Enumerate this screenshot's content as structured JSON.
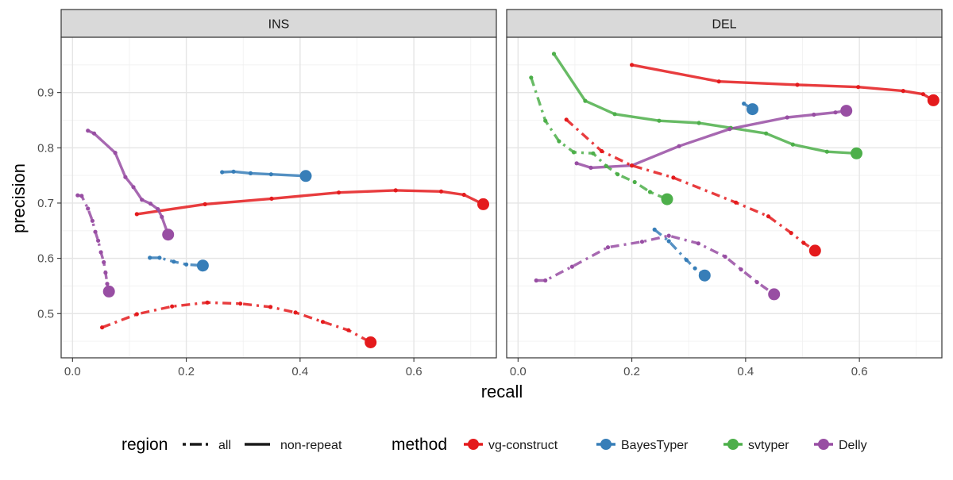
{
  "chart_data": {
    "type": "line",
    "xlabel": "recall",
    "ylabel": "precision",
    "xlim": [
      -0.02,
      0.745
    ],
    "ylim": [
      0.42,
      1.0
    ],
    "x_ticks": [
      0.0,
      0.2,
      0.4,
      0.6
    ],
    "x_tick_labels": [
      "0.0",
      "0.2",
      "0.4",
      "0.6"
    ],
    "y_ticks": [
      0.5,
      0.6,
      0.7,
      0.8,
      0.9
    ],
    "y_tick_labels": [
      "0.5",
      "0.6",
      "0.7",
      "0.8",
      "0.9"
    ],
    "grid": true,
    "legend_position": "bottom",
    "legend": {
      "region_title": "region",
      "region_items": [
        {
          "label": "all",
          "dash": "dashed"
        },
        {
          "label": "non-repeat",
          "dash": "solid"
        }
      ],
      "method_title": "method",
      "method_items": [
        {
          "label": "vg-construct",
          "color": "#e41a1c"
        },
        {
          "label": "BayesTyper",
          "color": "#377eb8"
        },
        {
          "label": "svtyper",
          "color": "#4daf4a"
        },
        {
          "label": "Delly",
          "color": "#984ea3"
        }
      ]
    },
    "colors": {
      "vg-construct": "#e41a1c",
      "BayesTyper": "#377eb8",
      "svtyper": "#4daf4a",
      "Delly": "#984ea3"
    },
    "panels": [
      {
        "title": "INS",
        "series": [
          {
            "method": "vg-construct",
            "region": "non-repeat",
            "points": [
              [
                0.113,
                0.68
              ],
              [
                0.233,
                0.698
              ],
              [
                0.35,
                0.708
              ],
              [
                0.468,
                0.719
              ],
              [
                0.568,
                0.723
              ],
              [
                0.648,
                0.721
              ],
              [
                0.688,
                0.715
              ],
              [
                0.722,
                0.698
              ]
            ]
          },
          {
            "method": "BayesTyper",
            "region": "non-repeat",
            "points": [
              [
                0.263,
                0.756
              ],
              [
                0.283,
                0.757
              ],
              [
                0.313,
                0.754
              ],
              [
                0.349,
                0.752
              ],
              [
                0.41,
                0.749
              ]
            ]
          },
          {
            "method": "Delly",
            "region": "non-repeat",
            "points": [
              [
                0.027,
                0.831
              ],
              [
                0.038,
                0.826
              ],
              [
                0.075,
                0.791
              ],
              [
                0.093,
                0.747
              ],
              [
                0.107,
                0.729
              ],
              [
                0.122,
                0.706
              ],
              [
                0.137,
                0.699
              ],
              [
                0.15,
                0.689
              ],
              [
                0.157,
                0.675
              ],
              [
                0.168,
                0.643
              ]
            ]
          },
          {
            "method": "vg-construct",
            "region": "all",
            "points": [
              [
                0.052,
                0.475
              ],
              [
                0.113,
                0.499
              ],
              [
                0.175,
                0.513
              ],
              [
                0.237,
                0.52
              ],
              [
                0.295,
                0.518
              ],
              [
                0.348,
                0.512
              ],
              [
                0.392,
                0.502
              ],
              [
                0.44,
                0.485
              ],
              [
                0.485,
                0.47
              ],
              [
                0.524,
                0.448
              ]
            ]
          },
          {
            "method": "BayesTyper",
            "region": "all",
            "points": [
              [
                0.136,
                0.601
              ],
              [
                0.153,
                0.601
              ],
              [
                0.178,
                0.594
              ],
              [
                0.2,
                0.589
              ],
              [
                0.229,
                0.587
              ]
            ]
          },
          {
            "method": "Delly",
            "region": "all",
            "points": [
              [
                0.009,
                0.714
              ],
              [
                0.016,
                0.713
              ],
              [
                0.027,
                0.69
              ],
              [
                0.035,
                0.668
              ],
              [
                0.04,
                0.648
              ],
              [
                0.045,
                0.632
              ],
              [
                0.05,
                0.611
              ],
              [
                0.055,
                0.593
              ],
              [
                0.058,
                0.574
              ],
              [
                0.061,
                0.554
              ],
              [
                0.064,
                0.54
              ]
            ]
          }
        ]
      },
      {
        "title": "DEL",
        "series": [
          {
            "method": "vg-construct",
            "region": "non-repeat",
            "points": [
              [
                0.2,
                0.95
              ],
              [
                0.353,
                0.92
              ],
              [
                0.491,
                0.914
              ],
              [
                0.598,
                0.91
              ],
              [
                0.677,
                0.903
              ],
              [
                0.712,
                0.897
              ],
              [
                0.73,
                0.886
              ]
            ]
          },
          {
            "method": "BayesTyper",
            "region": "non-repeat",
            "points": [
              [
                0.397,
                0.88
              ],
              [
                0.412,
                0.87
              ]
            ]
          },
          {
            "method": "svtyper",
            "region": "non-repeat",
            "points": [
              [
                0.063,
                0.97
              ],
              [
                0.118,
                0.885
              ],
              [
                0.17,
                0.861
              ],
              [
                0.248,
                0.849
              ],
              [
                0.318,
                0.845
              ],
              [
                0.374,
                0.836
              ],
              [
                0.436,
                0.826
              ],
              [
                0.483,
                0.806
              ],
              [
                0.543,
                0.793
              ],
              [
                0.595,
                0.79
              ]
            ]
          },
          {
            "method": "Delly",
            "region": "non-repeat",
            "points": [
              [
                0.103,
                0.772
              ],
              [
                0.128,
                0.764
              ],
              [
                0.2,
                0.768
              ],
              [
                0.283,
                0.803
              ],
              [
                0.372,
                0.834
              ],
              [
                0.473,
                0.855
              ],
              [
                0.52,
                0.86
              ],
              [
                0.558,
                0.864
              ],
              [
                0.577,
                0.867
              ]
            ]
          },
          {
            "method": "vg-construct",
            "region": "all",
            "points": [
              [
                0.085,
                0.851
              ],
              [
                0.147,
                0.794
              ],
              [
                0.2,
                0.768
              ],
              [
                0.273,
                0.746
              ],
              [
                0.383,
                0.701
              ],
              [
                0.44,
                0.676
              ],
              [
                0.48,
                0.646
              ],
              [
                0.502,
                0.628
              ],
              [
                0.522,
                0.614
              ]
            ]
          },
          {
            "method": "BayesTyper",
            "region": "all",
            "points": [
              [
                0.24,
                0.652
              ],
              [
                0.265,
                0.631
              ],
              [
                0.296,
                0.597
              ],
              [
                0.311,
                0.582
              ],
              [
                0.328,
                0.569
              ]
            ]
          },
          {
            "method": "svtyper",
            "region": "all",
            "points": [
              [
                0.023,
                0.927
              ],
              [
                0.048,
                0.849
              ],
              [
                0.072,
                0.812
              ],
              [
                0.098,
                0.792
              ],
              [
                0.132,
                0.79
              ],
              [
                0.155,
                0.767
              ],
              [
                0.175,
                0.752
              ],
              [
                0.205,
                0.738
              ],
              [
                0.232,
                0.72
              ],
              [
                0.262,
                0.707
              ]
            ]
          },
          {
            "method": "Delly",
            "region": "all",
            "points": [
              [
                0.032,
                0.56
              ],
              [
                0.048,
                0.56
              ],
              [
                0.095,
                0.585
              ],
              [
                0.158,
                0.62
              ],
              [
                0.218,
                0.63
              ],
              [
                0.265,
                0.641
              ],
              [
                0.317,
                0.627
              ],
              [
                0.364,
                0.603
              ],
              [
                0.392,
                0.58
              ],
              [
                0.42,
                0.557
              ],
              [
                0.45,
                0.535
              ]
            ]
          }
        ]
      }
    ]
  }
}
